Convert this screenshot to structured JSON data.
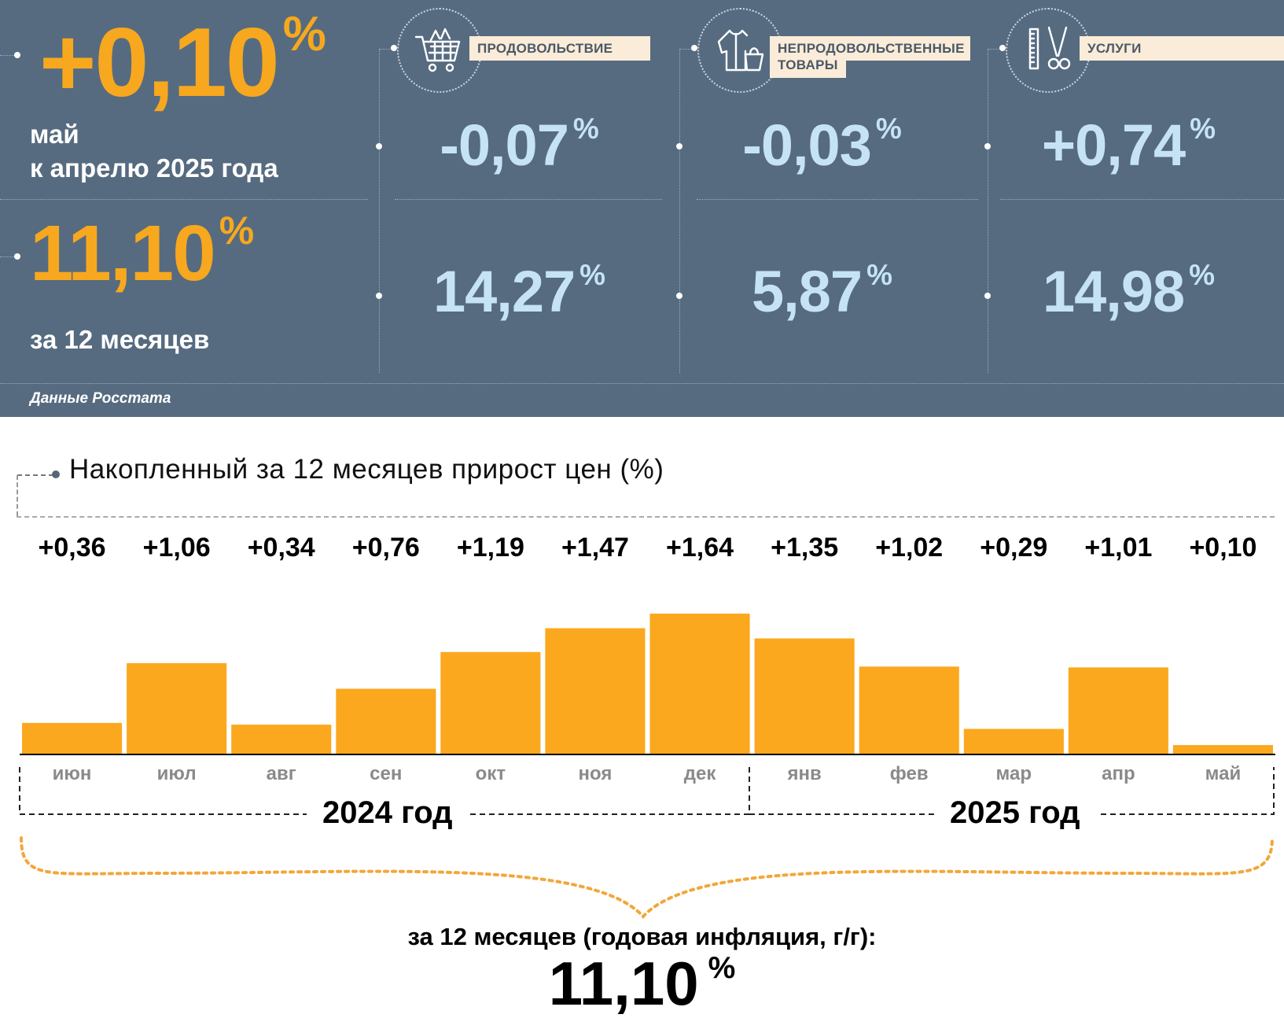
{
  "summary": {
    "month_value": "+0,10",
    "month_unit": "%",
    "month_caption_1": "май",
    "month_caption_2": "к апрелю 2025 года",
    "year_value": "11,10",
    "year_unit": "%",
    "year_caption": "за 12 месяцев",
    "source": "Данные Росстата"
  },
  "categories": [
    {
      "label_1": "ПРОДОВОЛЬСТВИЕ",
      "label_2": "",
      "icon": "shopping-cart-icon",
      "month": "-0,07",
      "year": "14,27",
      "unit": "%"
    },
    {
      "label_1": "НЕПРОДОВОЛЬСТВЕННЫЕ",
      "label_2": "ТОВАРЫ",
      "icon": "clothes-bag-icon",
      "month": "-0,03",
      "year": "5,87",
      "unit": "%"
    },
    {
      "label_1": "УСЛУГИ",
      "label_2": "",
      "icon": "scissors-comb-icon",
      "month": "+0,74",
      "year": "14,98",
      "unit": "%"
    }
  ],
  "colors": {
    "panel": "#566b80",
    "accent_orange": "#f7a81e",
    "value_blue": "#c5e3f5",
    "label_bg": "#faecd8"
  },
  "chart_data": {
    "type": "bar",
    "title": "Накопленный за 12 месяцев прирост цен (%)",
    "categories": [
      "июн",
      "июл",
      "авг",
      "сен",
      "окт",
      "ноя",
      "дек",
      "янв",
      "фев",
      "мар",
      "апр",
      "май"
    ],
    "values": [
      0.36,
      1.06,
      0.34,
      0.76,
      1.19,
      1.47,
      1.64,
      1.35,
      1.02,
      0.29,
      1.01,
      0.1
    ],
    "value_labels": [
      "+0,36",
      "+1,06",
      "+0,34",
      "+0,76",
      "+1,19",
      "+1,47",
      "+1,64",
      "+1,35",
      "+1,02",
      "+0,29",
      "+1,01",
      "+0,10"
    ],
    "ylim": [
      0,
      1.64
    ],
    "bar_color": "#fba81f",
    "year_groups": [
      {
        "label": "2024 год",
        "months": 7
      },
      {
        "label": "2025 год",
        "months": 5
      }
    ],
    "footer_caption": "за 12 месяцев (годовая инфляция, г/г):",
    "footer_value": "11,10",
    "footer_unit": "%"
  }
}
